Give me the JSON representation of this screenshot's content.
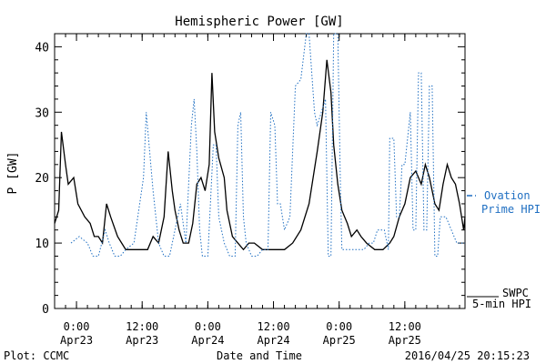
{
  "chart_data": {
    "type": "line",
    "title": "Hemispheric Power [GW]",
    "xlabel": "Date and Time",
    "ylabel": "P [GW]",
    "ylim": [
      0,
      42
    ],
    "yticks": [
      0,
      10,
      20,
      30,
      40
    ],
    "xlim": [
      "2016-04-22T20:00",
      "2016-04-25T23:00"
    ],
    "xticks": [
      {
        "t": "2016-04-23T00:00",
        "time": "0:00",
        "date": "Apr23"
      },
      {
        "t": "2016-04-23T12:00",
        "time": "12:00",
        "date": "Apr23"
      },
      {
        "t": "2016-04-24T00:00",
        "time": "0:00",
        "date": "Apr24"
      },
      {
        "t": "2016-04-24T12:00",
        "time": "12:00",
        "date": "Apr24"
      },
      {
        "t": "2016-04-25T00:00",
        "time": "0:00",
        "date": "Apr25"
      },
      {
        "t": "2016-04-25T12:00",
        "time": "12:00",
        "date": "Apr25"
      }
    ],
    "grid": false,
    "legend_position": "right",
    "series": [
      {
        "name": "SWPC 5-min HPI",
        "style": "solid",
        "color": "#000000",
        "points": [
          [
            "2016-04-22T20:00",
            13
          ],
          [
            "2016-04-22T20:45",
            15
          ],
          [
            "2016-04-22T21:15",
            27
          ],
          [
            "2016-04-22T22:00",
            22
          ],
          [
            "2016-04-22T22:30",
            19
          ],
          [
            "2016-04-22T23:30",
            20
          ],
          [
            "2016-04-23T00:15",
            16
          ],
          [
            "2016-04-23T01:30",
            14
          ],
          [
            "2016-04-23T02:30",
            13
          ],
          [
            "2016-04-23T03:15",
            11
          ],
          [
            "2016-04-23T04:00",
            11
          ],
          [
            "2016-04-23T04:45",
            10
          ],
          [
            "2016-04-23T05:30",
            16
          ],
          [
            "2016-04-23T06:15",
            14
          ],
          [
            "2016-04-23T07:30",
            11
          ],
          [
            "2016-04-23T08:15",
            10
          ],
          [
            "2016-04-23T09:00",
            9
          ],
          [
            "2016-04-23T11:00",
            9
          ],
          [
            "2016-04-23T13:00",
            9
          ],
          [
            "2016-04-23T14:00",
            11
          ],
          [
            "2016-04-23T15:00",
            10
          ],
          [
            "2016-04-23T16:00",
            14
          ],
          [
            "2016-04-23T16:45",
            24
          ],
          [
            "2016-04-23T17:30",
            18
          ],
          [
            "2016-04-23T18:00",
            15
          ],
          [
            "2016-04-23T18:45",
            12
          ],
          [
            "2016-04-23T19:30",
            10
          ],
          [
            "2016-04-23T20:30",
            10
          ],
          [
            "2016-04-23T21:15",
            13
          ],
          [
            "2016-04-23T22:00",
            19
          ],
          [
            "2016-04-23T22:45",
            20
          ],
          [
            "2016-04-23T23:30",
            18
          ],
          [
            "2016-04-24T00:15",
            22
          ],
          [
            "2016-04-24T00:45",
            36
          ],
          [
            "2016-04-24T01:15",
            27
          ],
          [
            "2016-04-24T02:00",
            23
          ],
          [
            "2016-04-24T03:00",
            20
          ],
          [
            "2016-04-24T03:30",
            15
          ],
          [
            "2016-04-24T04:30",
            11
          ],
          [
            "2016-04-24T05:30",
            10
          ],
          [
            "2016-04-24T06:30",
            9
          ],
          [
            "2016-04-24T07:30",
            10
          ],
          [
            "2016-04-24T08:30",
            10
          ],
          [
            "2016-04-24T10:00",
            9
          ],
          [
            "2016-04-24T12:00",
            9
          ],
          [
            "2016-04-24T14:00",
            9
          ],
          [
            "2016-04-24T15:30",
            10
          ],
          [
            "2016-04-24T17:00",
            12
          ],
          [
            "2016-04-24T18:30",
            16
          ],
          [
            "2016-04-24T20:00",
            24
          ],
          [
            "2016-04-24T21:00",
            30
          ],
          [
            "2016-04-24T21:45",
            38
          ],
          [
            "2016-04-24T22:30",
            33
          ],
          [
            "2016-04-24T23:00",
            25
          ],
          [
            "2016-04-24T23:45",
            19
          ],
          [
            "2016-04-25T00:30",
            15
          ],
          [
            "2016-04-25T01:30",
            13
          ],
          [
            "2016-04-25T02:15",
            11
          ],
          [
            "2016-04-25T03:15",
            12
          ],
          [
            "2016-04-25T04:00",
            11
          ],
          [
            "2016-04-25T05:00",
            10
          ],
          [
            "2016-04-25T06:30",
            9
          ],
          [
            "2016-04-25T08:00",
            9
          ],
          [
            "2016-04-25T09:15",
            10
          ],
          [
            "2016-04-25T10:00",
            11
          ],
          [
            "2016-04-25T11:00",
            14
          ],
          [
            "2016-04-25T12:00",
            16
          ],
          [
            "2016-04-25T13:00",
            20
          ],
          [
            "2016-04-25T14:00",
            21
          ],
          [
            "2016-04-25T15:00",
            19
          ],
          [
            "2016-04-25T15:45",
            22
          ],
          [
            "2016-04-25T16:30",
            20
          ],
          [
            "2016-04-25T17:30",
            16
          ],
          [
            "2016-04-25T18:15",
            15
          ],
          [
            "2016-04-25T19:00",
            19
          ],
          [
            "2016-04-25T19:45",
            22
          ],
          [
            "2016-04-25T20:30",
            20
          ],
          [
            "2016-04-25T21:15",
            19
          ],
          [
            "2016-04-25T22:00",
            16
          ],
          [
            "2016-04-25T22:45",
            12
          ],
          [
            "2016-04-25T23:00",
            14
          ]
        ]
      },
      {
        "name": "Ovation Prime HPI",
        "style": "dotted",
        "color": "#1f6fc2",
        "points": [
          [
            "2016-04-22T23:00",
            10
          ],
          [
            "2016-04-23T00:30",
            11
          ],
          [
            "2016-04-23T02:00",
            10
          ],
          [
            "2016-04-23T03:00",
            8
          ],
          [
            "2016-04-23T04:00",
            8
          ],
          [
            "2016-04-23T05:15",
            12
          ],
          [
            "2016-04-23T06:00",
            10
          ],
          [
            "2016-04-23T07:00",
            8
          ],
          [
            "2016-04-23T08:00",
            8
          ],
          [
            "2016-04-23T09:00",
            9
          ],
          [
            "2016-04-23T10:30",
            10
          ],
          [
            "2016-04-23T12:15",
            20
          ],
          [
            "2016-04-23T12:45",
            30
          ],
          [
            "2016-04-23T14:00",
            18
          ],
          [
            "2016-04-23T15:00",
            10
          ],
          [
            "2016-04-23T16:00",
            8
          ],
          [
            "2016-04-23T17:00",
            8
          ],
          [
            "2016-04-23T18:00",
            12
          ],
          [
            "2016-04-23T19:00",
            16
          ],
          [
            "2016-04-23T20:00",
            10
          ],
          [
            "2016-04-23T21:00",
            28
          ],
          [
            "2016-04-23T21:30",
            32
          ],
          [
            "2016-04-23T22:00",
            24
          ],
          [
            "2016-04-23T22:30",
            12
          ],
          [
            "2016-04-23T23:00",
            8
          ],
          [
            "2016-04-24T00:00",
            8
          ],
          [
            "2016-04-24T01:00",
            25
          ],
          [
            "2016-04-24T01:30",
            25
          ],
          [
            "2016-04-24T02:00",
            14
          ],
          [
            "2016-04-24T03:00",
            10
          ],
          [
            "2016-04-24T04:00",
            8
          ],
          [
            "2016-04-24T05:00",
            8
          ],
          [
            "2016-04-24T05:30",
            28
          ],
          [
            "2016-04-24T06:00",
            30
          ],
          [
            "2016-04-24T06:30",
            14
          ],
          [
            "2016-04-24T07:00",
            10
          ],
          [
            "2016-04-24T08:00",
            8
          ],
          [
            "2016-04-24T09:00",
            8
          ],
          [
            "2016-04-24T10:00",
            9
          ],
          [
            "2016-04-24T11:00",
            9
          ],
          [
            "2016-04-24T11:30",
            30
          ],
          [
            "2016-04-24T12:15",
            28
          ],
          [
            "2016-04-24T12:45",
            16
          ],
          [
            "2016-04-24T13:15",
            16
          ],
          [
            "2016-04-24T14:00",
            12
          ],
          [
            "2016-04-24T15:00",
            14
          ],
          [
            "2016-04-24T16:00",
            34
          ],
          [
            "2016-04-24T17:00",
            35
          ],
          [
            "2016-04-24T18:00",
            42
          ],
          [
            "2016-04-24T18:30",
            42
          ],
          [
            "2016-04-24T19:30",
            30
          ],
          [
            "2016-04-24T20:00",
            28
          ],
          [
            "2016-04-24T21:30",
            32
          ],
          [
            "2016-04-24T22:00",
            8
          ],
          [
            "2016-04-24T22:30",
            8
          ],
          [
            "2016-04-24T23:00",
            42
          ],
          [
            "2016-04-24T23:45",
            42
          ],
          [
            "2016-04-25T00:15",
            18
          ],
          [
            "2016-04-25T00:30",
            9
          ],
          [
            "2016-04-25T01:30",
            9
          ],
          [
            "2016-04-25T03:00",
            9
          ],
          [
            "2016-04-25T04:30",
            9
          ],
          [
            "2016-04-25T05:30",
            10
          ],
          [
            "2016-04-25T06:15",
            10
          ],
          [
            "2016-04-25T07:00",
            12
          ],
          [
            "2016-04-25T08:15",
            12
          ],
          [
            "2016-04-25T09:00",
            9
          ],
          [
            "2016-04-25T09:15",
            26
          ],
          [
            "2016-04-25T10:00",
            26
          ],
          [
            "2016-04-25T10:30",
            14
          ],
          [
            "2016-04-25T11:00",
            14
          ],
          [
            "2016-04-25T11:30",
            22
          ],
          [
            "2016-04-25T12:00",
            22
          ],
          [
            "2016-04-25T12:30",
            26
          ],
          [
            "2016-04-25T13:00",
            30
          ],
          [
            "2016-04-25T13:30",
            12
          ],
          [
            "2016-04-25T14:00",
            12
          ],
          [
            "2016-04-25T14:30",
            36
          ],
          [
            "2016-04-25T15:00",
            36
          ],
          [
            "2016-04-25T15:30",
            12
          ],
          [
            "2016-04-25T16:00",
            12
          ],
          [
            "2016-04-25T16:30",
            34
          ],
          [
            "2016-04-25T17:00",
            34
          ],
          [
            "2016-04-25T17:30",
            8
          ],
          [
            "2016-04-25T18:00",
            8
          ],
          [
            "2016-04-25T18:30",
            14
          ],
          [
            "2016-04-25T19:30",
            14
          ],
          [
            "2016-04-25T20:30",
            12
          ],
          [
            "2016-04-25T21:30",
            10
          ],
          [
            "2016-04-25T22:30",
            10
          ],
          [
            "2016-04-25T23:00",
            10
          ]
        ]
      }
    ]
  },
  "legend": {
    "swpc_line1": "SWPC",
    "swpc_line2": "5-min HPI",
    "ovation_line1": "Ovation",
    "ovation_line2": "Prime HPI"
  },
  "footer": {
    "plot_credit": "Plot: CCMC",
    "timestamp": "2016/04/25 20:15:23"
  },
  "colors": {
    "swpc": "#000000",
    "ovation": "#1f6fc2"
  }
}
